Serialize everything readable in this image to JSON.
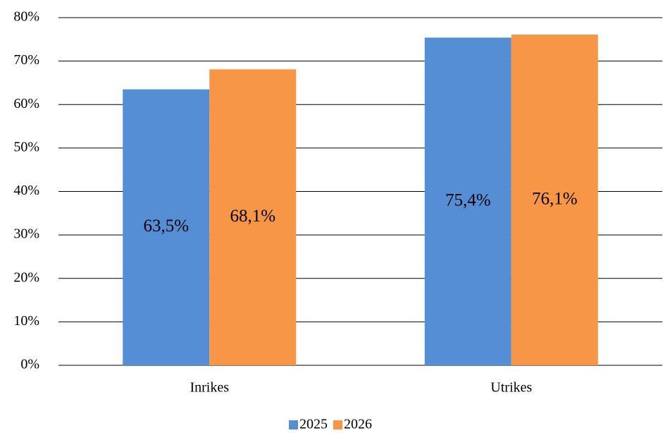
{
  "chart_data": {
    "type": "bar",
    "categories": [
      "Inrikes",
      "Utrikes"
    ],
    "series": [
      {
        "name": "2025",
        "color": "#558ed5",
        "values": [
          63.5,
          75.4
        ],
        "value_labels": [
          "63,5%",
          "75,4%"
        ]
      },
      {
        "name": "2026",
        "color": "#f79646",
        "values": [
          68.1,
          76.1
        ],
        "value_labels": [
          "68,1%",
          "76,1%"
        ]
      }
    ],
    "ylim": [
      0,
      80
    ],
    "yticks": [
      {
        "value": 0,
        "label": "0%"
      },
      {
        "value": 10,
        "label": "10%"
      },
      {
        "value": 20,
        "label": "20%"
      },
      {
        "value": 30,
        "label": "30%"
      },
      {
        "value": 40,
        "label": "40%"
      },
      {
        "value": 50,
        "label": "50%"
      },
      {
        "value": 60,
        "label": "60%"
      },
      {
        "value": 70,
        "label": "70%"
      },
      {
        "value": 80,
        "label": "80%"
      }
    ],
    "grid": true,
    "legend": "bottom"
  }
}
